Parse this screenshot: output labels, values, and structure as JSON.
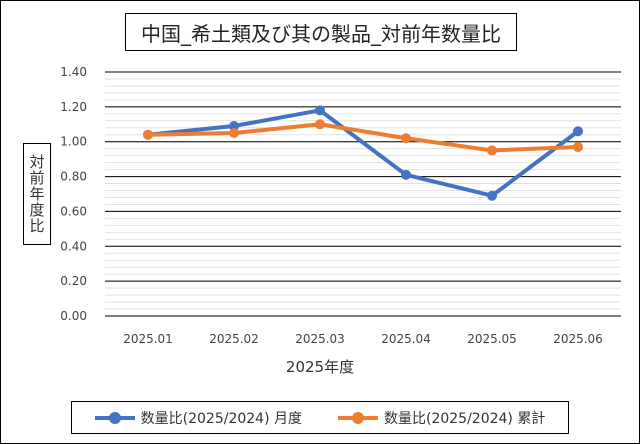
{
  "chart_data": {
    "type": "line",
    "title": "中国_希土類及び其の製品_対前年数量比",
    "xlabel": "2025年度",
    "ylabel": "対前年度比",
    "categories": [
      "2025.01",
      "2025.02",
      "2025.03",
      "2025.04",
      "2025.05",
      "2025.06"
    ],
    "ylim": [
      0,
      1.4
    ],
    "yticks": [
      "0.00",
      "0.20",
      "0.40",
      "0.60",
      "0.80",
      "1.00",
      "1.20",
      "1.40"
    ],
    "grid": true,
    "legend_position": "bottom",
    "series": [
      {
        "name": "数量比(2025/2024) 月度",
        "color": "#4472C4",
        "values": [
          1.04,
          1.09,
          1.18,
          0.81,
          0.69,
          1.06
        ]
      },
      {
        "name": "数量比(2025/2024) 累計",
        "color": "#ED7D31",
        "values": [
          1.04,
          1.05,
          1.1,
          1.02,
          0.95,
          0.97
        ]
      }
    ]
  }
}
